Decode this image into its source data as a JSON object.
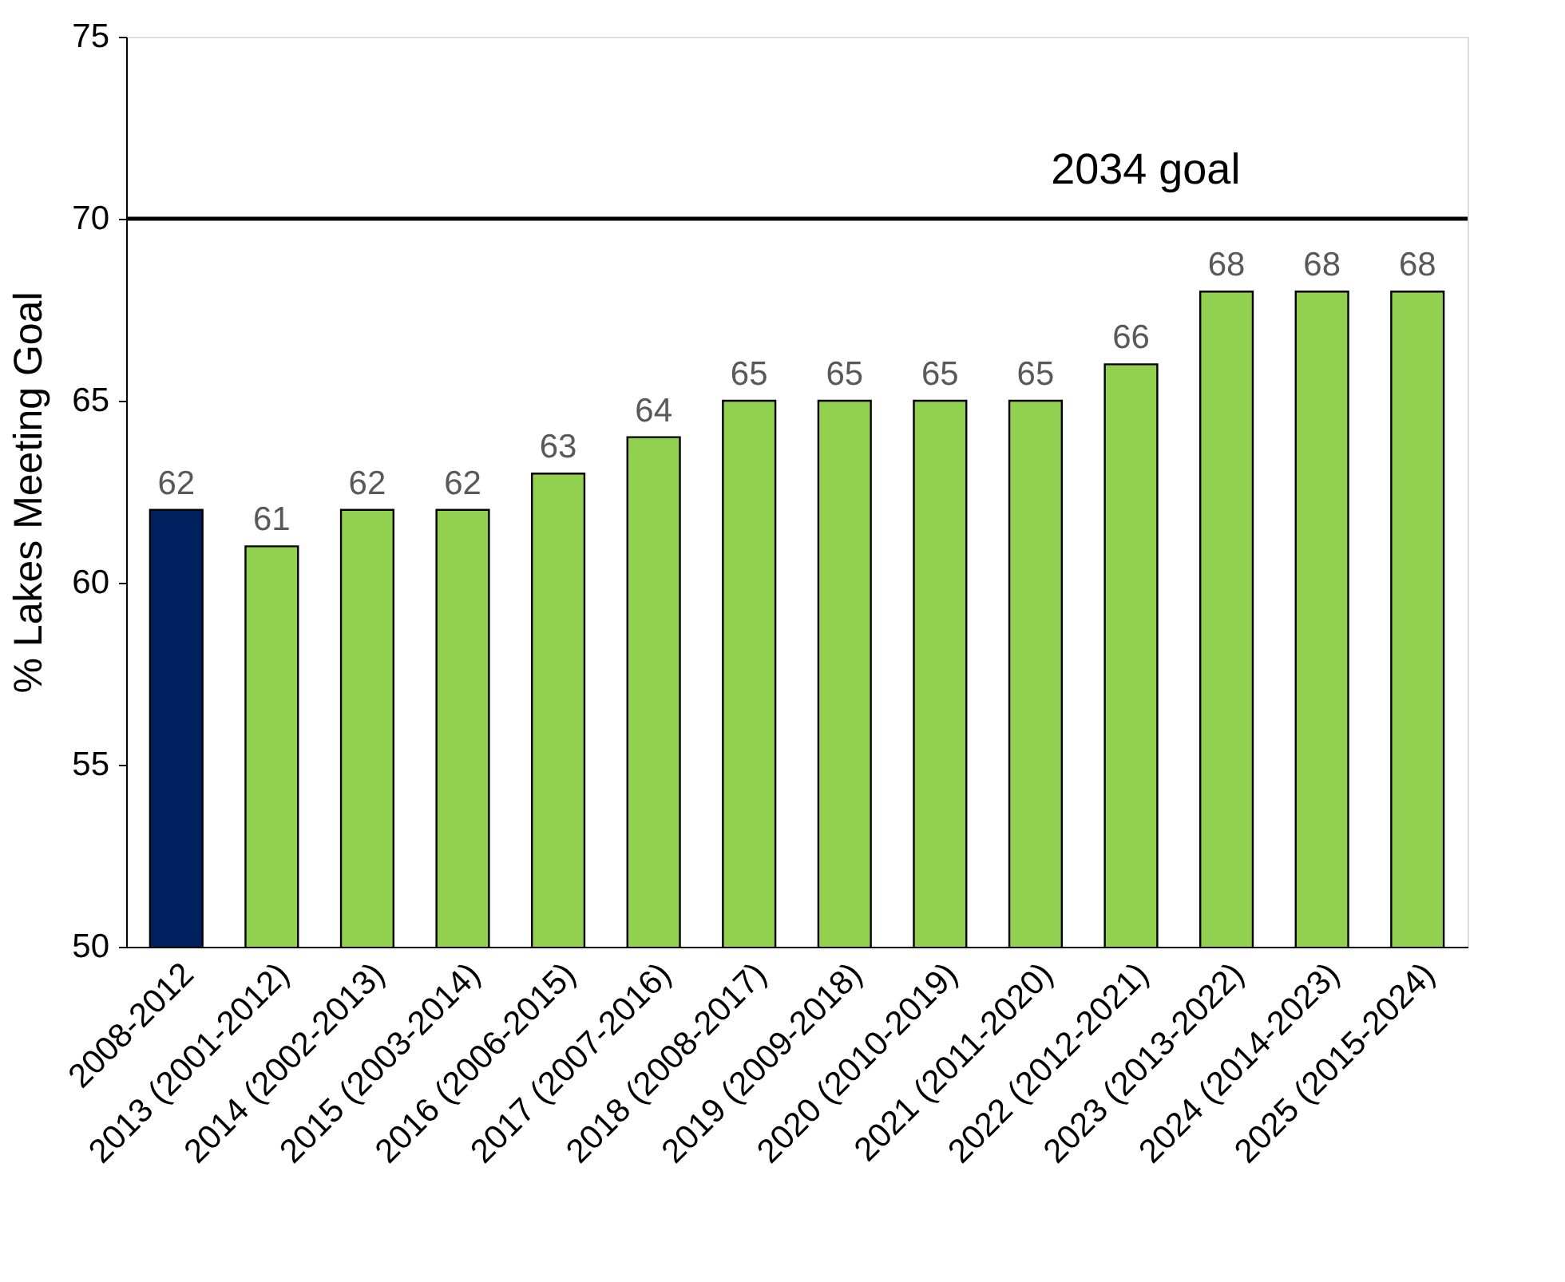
{
  "chart_data": {
    "type": "bar",
    "ylabel": "% Lakes Meeting Goal",
    "categories": [
      "2008-2012",
      "2013 (2001-2012)",
      "2014 (2002-2013)",
      "2015 (2003-2014)",
      "2016 (2006-2015)",
      "2017 (2007-2016)",
      "2018 (2008-2017)",
      "2019 (2009-2018)",
      "2020 (2010-2019)",
      "2021 (2011-2020)",
      "2022 (2012-2021)",
      "2023 (2013-2022)",
      "2024 (2014-2023)",
      "2025 (2015-2024)"
    ],
    "values": [
      62,
      61,
      62,
      62,
      63,
      64,
      65,
      65,
      65,
      65,
      66,
      68,
      68,
      68
    ],
    "colors": [
      "#002060",
      "#92d050",
      "#92d050",
      "#92d050",
      "#92d050",
      "#92d050",
      "#92d050",
      "#92d050",
      "#92d050",
      "#92d050",
      "#92d050",
      "#92d050",
      "#92d050",
      "#92d050"
    ],
    "ylim": [
      50,
      75
    ],
    "yticks": [
      50,
      55,
      60,
      65,
      70,
      75
    ],
    "ref_lines": [
      {
        "axis": "y",
        "value": 70,
        "label": "2034 goal",
        "color": "#000000",
        "line_style": "solid"
      }
    ],
    "data_labels": true,
    "grid": false
  }
}
